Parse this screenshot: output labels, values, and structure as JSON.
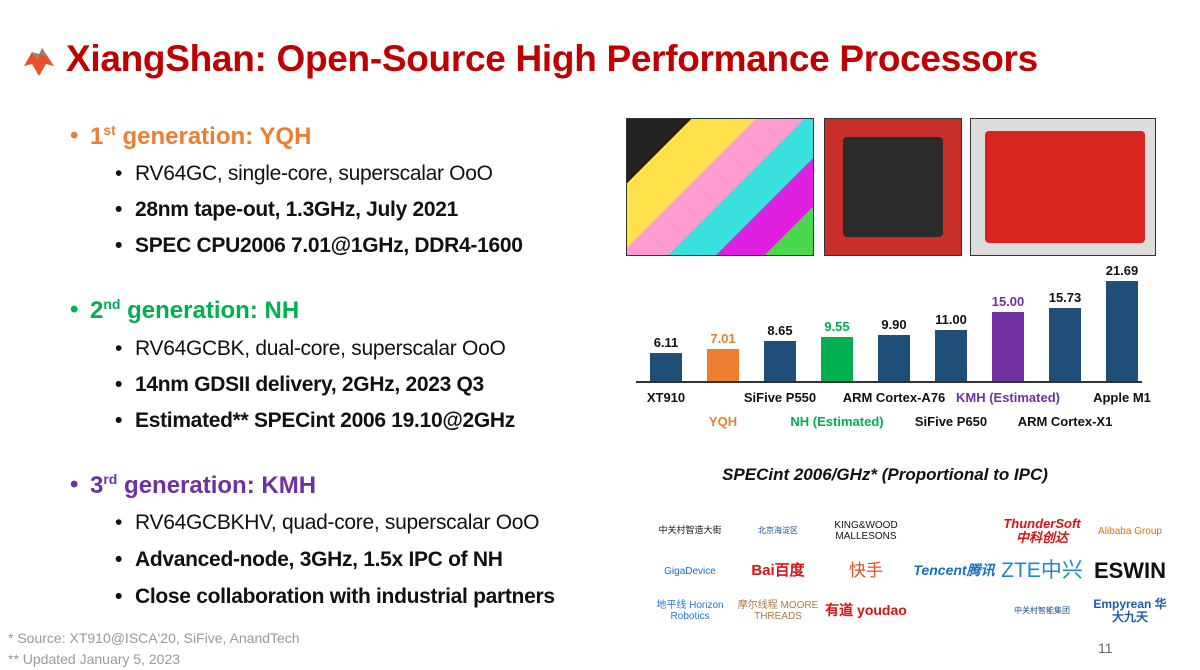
{
  "title": "XiangShan: Open-Source High Performance Processors",
  "generations": [
    {
      "ord": "1",
      "sup": "st",
      "label": " generation: YQH",
      "color": "#ed7d31",
      "items": [
        "RV64GC, single-core, superscalar OoO",
        "28nm tape-out, 1.3GHz, July 2021",
        "SPEC CPU2006 7.01@1GHz, DDR4-1600"
      ]
    },
    {
      "ord": "2",
      "sup": "nd",
      "label": " generation: NH",
      "color": "#00b050",
      "items": [
        "RV64GCBK, dual-core, superscalar OoO",
        "14nm GDSII delivery, 2GHz, 2023 Q3",
        "Estimated** SPECint 2006 19.10@2GHz"
      ]
    },
    {
      "ord": "3",
      "sup": "rd",
      "label": " generation: KMH",
      "color": "#7030a0",
      "items": [
        "RV64GCBKHV, quad-core, superscalar OoO",
        "Advanced-node, 3GHz, 1.5x IPC of NH",
        "Close collaboration with industrial partners"
      ]
    }
  ],
  "chart_data": {
    "type": "bar",
    "title": "SPECint 2006/GHz* (Proportional to IPC)",
    "categories": [
      "XT910",
      "YQH",
      "SiFive P550",
      "NH (Estimated)",
      "ARM Cortex-A76",
      "SiFive P650",
      "KMH (Estimated)",
      "ARM Cortex-X1",
      "Apple M1"
    ],
    "values": [
      6.11,
      7.01,
      8.65,
      9.55,
      9.9,
      11.0,
      15.0,
      15.73,
      21.69
    ],
    "labels": [
      "6.11",
      "7.01",
      "8.65",
      "9.55",
      "9.90",
      "11.00",
      "15.00",
      "15.73",
      "21.69"
    ],
    "colors": [
      "#1f4e79",
      "#ed7d31",
      "#1f4e79",
      "#00b050",
      "#1f4e79",
      "#1f4e79",
      "#7030a0",
      "#1f4e79",
      "#1f4e79"
    ],
    "label_colors": [
      "#111",
      "#ed7d31",
      "#111",
      "#00b050",
      "#111",
      "#111",
      "#7030a0",
      "#111",
      "#111"
    ],
    "ylim": [
      0,
      22
    ]
  },
  "partners": [
    "中关村智造大街",
    "北京海淀区",
    "KING&WOOD MALLESONS",
    "",
    "ThunderSoft 中科创达",
    "Alibaba Group",
    "GigaDevice",
    "Bai百度",
    "快手",
    "Tencent腾讯",
    "ZTE中兴",
    "ESWIN",
    "地平线 Horizon Robotics",
    "摩尔线程 MOORE THREADS",
    "有道 youdao",
    "",
    "中关村智能集团",
    "Empyrean 华大九天"
  ],
  "footnotes": [
    "* Source: XT910@ISCA'20, SiFive,  AnandTech",
    "** Updated January 5, 2023"
  ],
  "page_number": "11"
}
